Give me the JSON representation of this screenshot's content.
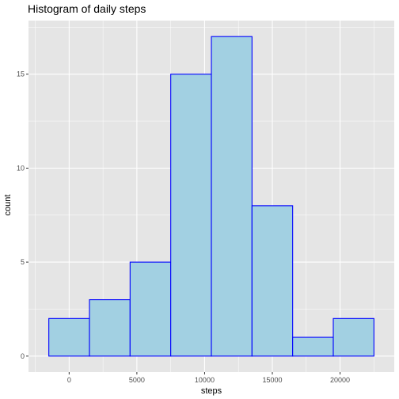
{
  "chart_data": {
    "type": "histogram",
    "title": "Histogram of daily steps",
    "xlabel": "steps",
    "ylabel": "count",
    "bins": [
      {
        "x0": -1500,
        "x1": 1500,
        "count": 2
      },
      {
        "x0": 1500,
        "x1": 4500,
        "count": 3
      },
      {
        "x0": 4500,
        "x1": 7500,
        "count": 5
      },
      {
        "x0": 7500,
        "x1": 10500,
        "count": 15
      },
      {
        "x0": 10500,
        "x1": 13500,
        "count": 17
      },
      {
        "x0": 13500,
        "x1": 16500,
        "count": 8
      },
      {
        "x0": 16500,
        "x1": 19500,
        "count": 1
      },
      {
        "x0": 19500,
        "x1": 22500,
        "count": 2
      }
    ],
    "xlim": [
      -3000,
      24000
    ],
    "ylim": [
      -0.85,
      17.85
    ],
    "xticks": [
      0,
      5000,
      10000,
      15000,
      20000
    ],
    "yticks": [
      0,
      5,
      10,
      15
    ],
    "grid": true,
    "colors": {
      "bar_fill": "#a2d0e2",
      "bar_stroke": "#0000ff",
      "panel_background": "#e5e5e5",
      "grid": "#ffffff"
    }
  }
}
